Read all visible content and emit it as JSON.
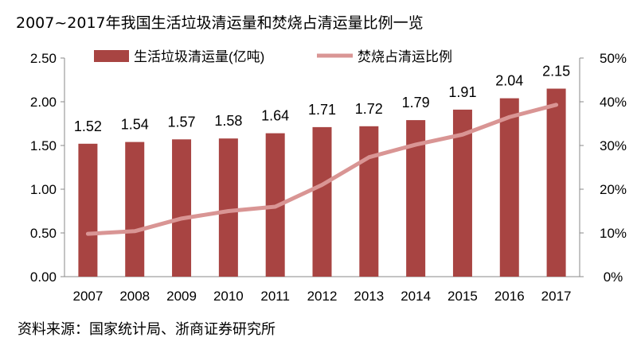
{
  "title": "2007~2017年我国生活垃圾清运量和焚烧占清运量比例一览",
  "source": "资料来源：国家统计局、浙商证券研究所",
  "chart_data": {
    "type": "bar+line",
    "categories": [
      "2007",
      "2008",
      "2009",
      "2010",
      "2011",
      "2012",
      "2013",
      "2014",
      "2015",
      "2016",
      "2017"
    ],
    "series": [
      {
        "name": "生活垃圾清运量(亿吨)",
        "type": "bar",
        "axis": "left",
        "color": "#A84442",
        "values": [
          1.52,
          1.54,
          1.57,
          1.58,
          1.64,
          1.71,
          1.72,
          1.79,
          1.91,
          2.04,
          2.15
        ],
        "labels": [
          "1.52",
          "1.54",
          "1.57",
          "1.58",
          "1.64",
          "1.71",
          "1.72",
          "1.79",
          "1.91",
          "2.04",
          "2.15"
        ]
      },
      {
        "name": "焚烧占清运比例",
        "type": "line",
        "axis": "right",
        "color": "#D99594",
        "values": [
          9.8,
          10.4,
          13.3,
          15.0,
          16.0,
          21.0,
          27.3,
          30.2,
          32.5,
          36.5,
          39.3
        ]
      }
    ],
    "left_axis": {
      "range": [
        0,
        2.5
      ],
      "ticks": [
        "0.00",
        "0.50",
        "1.00",
        "1.50",
        "2.00",
        "2.50"
      ]
    },
    "right_axis": {
      "range": [
        0,
        50
      ],
      "ticks": [
        "0%",
        "10%",
        "20%",
        "30%",
        "40%",
        "50%"
      ]
    },
    "grid": false,
    "legend": "top"
  }
}
